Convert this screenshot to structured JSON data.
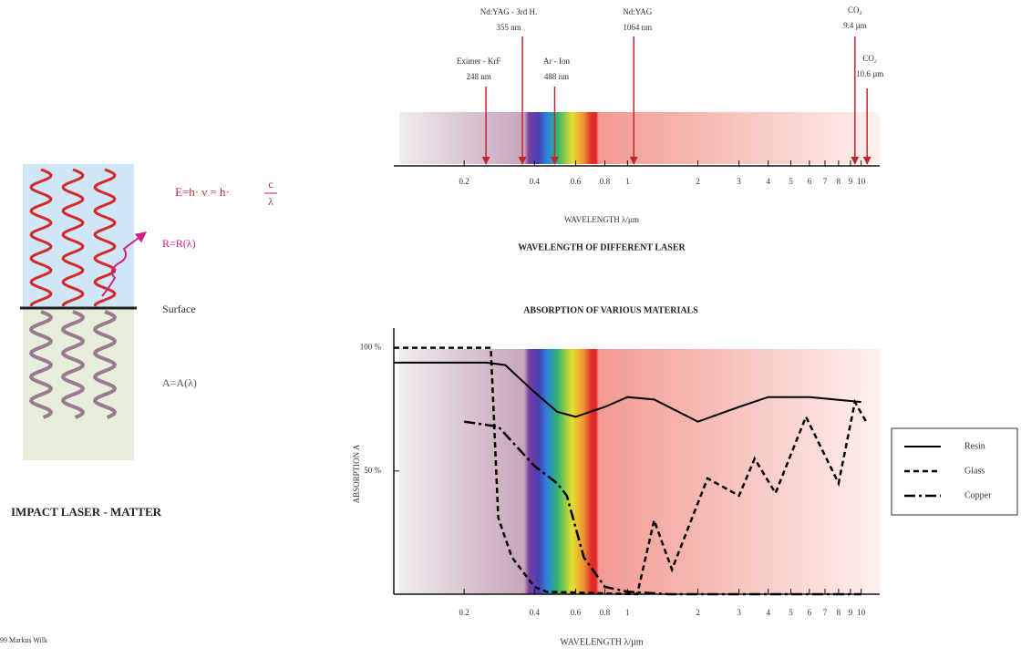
{
  "diagram": {
    "energy_formula": "E=h· ν = h·",
    "formula_numerator": "c",
    "formula_denominator": "λ",
    "reflection_label": "R=R(λ)",
    "surface_label": "Surface",
    "absorption_label": "A=A(λ)",
    "title": "IMPACT LASER - MATTER",
    "credit": "99 Markus Wilk"
  },
  "chart_data": [
    {
      "type": "axis",
      "title": "WAVELENGTH OF DIFFERENT LASER",
      "x_label": "WAVELENGTH λ/µm",
      "log_x": true,
      "xlim": [
        0.1,
        12
      ],
      "xticks": [
        0.2,
        0.4,
        0.6,
        0.8,
        1,
        2,
        3,
        4,
        5,
        6,
        7,
        8,
        9,
        10
      ],
      "color": "#c0272d",
      "lasers": [
        {
          "name": "Eximer - KrF",
          "wavelength_label": "248 nm",
          "x": 0.248
        },
        {
          "name": "Nd:YAG - 3rd H.",
          "wavelength_label": "355 nm",
          "x": 0.355
        },
        {
          "name": "Ar - Ion",
          "wavelength_label": "488 nm",
          "x": 0.488
        },
        {
          "name": "Nd:YAG",
          "wavelength_label": "1064 nm",
          "x": 1.064
        },
        {
          "name": "CO₂",
          "wavelength_label": "9.4 µm",
          "x": 9.4
        },
        {
          "name": "CO₂",
          "wavelength_label": "10.6 µm",
          "x": 10.6
        }
      ]
    },
    {
      "type": "line",
      "title": "ABSORPTION OF VARIOUS MATERIALS",
      "x_label": "WAVELENGTH λ/µm",
      "y_label": "ABSORPTION A",
      "log_x": true,
      "xlim": [
        0.1,
        12
      ],
      "xticks": [
        0.2,
        0.4,
        0.6,
        0.8,
        1,
        2,
        3,
        4,
        5,
        6,
        7,
        8,
        9,
        10
      ],
      "ylim": [
        0,
        108
      ],
      "yticks": [
        {
          "value": 50,
          "label": "50 %"
        },
        {
          "value": 100,
          "label": "100 %"
        }
      ],
      "legend": "right",
      "series": [
        {
          "name": "Resin",
          "color": "#000000",
          "dash": "solid",
          "x": [
            0.1,
            0.25,
            0.3,
            0.4,
            0.5,
            0.6,
            0.8,
            1,
            1.3,
            2,
            3,
            4,
            6,
            10
          ],
          "values": [
            94,
            94,
            93,
            82,
            74,
            72,
            76,
            80,
            79,
            70,
            76,
            80,
            80,
            78
          ]
        },
        {
          "name": "Glass",
          "color": "#000000",
          "dash": "dashed",
          "x": [
            0.1,
            0.26,
            0.28,
            0.32,
            0.4,
            0.45,
            1.1,
            1.3,
            1.55,
            2.2,
            3,
            3.5,
            4.3,
            5.8,
            8,
            9.4,
            10.5
          ],
          "values": [
            100,
            100,
            31,
            15,
            3,
            1,
            0,
            30,
            10,
            47,
            40,
            55,
            41,
            72,
            45,
            78,
            70
          ]
        },
        {
          "name": "Copper",
          "color": "#000000",
          "dash": "dash-dot",
          "x": [
            0.2,
            0.28,
            0.4,
            0.5,
            0.55,
            0.65,
            0.8,
            1,
            1.5,
            10
          ],
          "values": [
            70,
            68,
            52,
            45,
            40,
            15,
            3,
            1,
            0,
            0
          ]
        }
      ]
    }
  ]
}
